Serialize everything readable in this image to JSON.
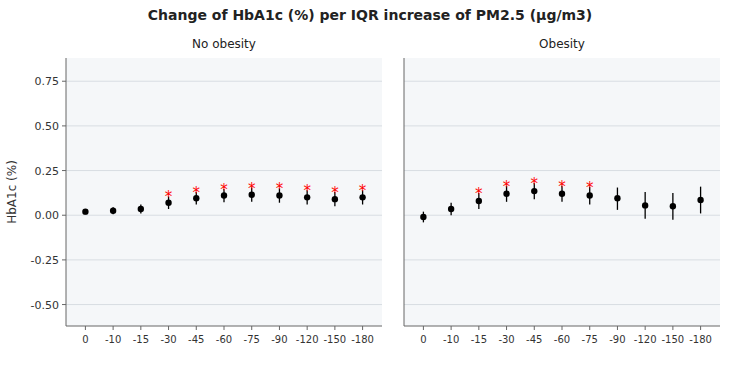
{
  "chart_data": [
    {
      "type": "errorbar",
      "title": "Change of HbA1c (%) per IQR increase of PM2.5 (μg/m3)",
      "subtitle": "No obesity",
      "y_label": "HbA1c (%)",
      "categories": [
        "0",
        "-10",
        "-15",
        "-30",
        "-45",
        "-60",
        "-75",
        "-90",
        "-120",
        "-150",
        "-180"
      ],
      "ylim": [
        -0.62,
        0.88
      ],
      "yticks": [
        {
          "value": -0.5,
          "label": "-0.50"
        },
        -0.25,
        {
          "value": 0.0,
          "label": "0.00"
        },
        0.25,
        {
          "value": 0.5,
          "label": "0.50"
        },
        0.75
      ],
      "grid": true,
      "series": [
        {
          "color": "black",
          "values": [
            0.02,
            0.025,
            0.035,
            0.07,
            0.095,
            0.11,
            0.115,
            0.11,
            0.1,
            0.09,
            0.1
          ],
          "lower": [
            0.005,
            0.005,
            0.01,
            0.035,
            0.06,
            0.073,
            0.075,
            0.07,
            0.06,
            0.05,
            0.06
          ],
          "upper": [
            0.035,
            0.045,
            0.06,
            0.105,
            0.13,
            0.147,
            0.155,
            0.15,
            0.14,
            0.13,
            0.14
          ],
          "significant": [
            false,
            false,
            false,
            true,
            true,
            true,
            true,
            true,
            true,
            true,
            true
          ],
          "annotation": {
            "text": "*",
            "color": "red"
          }
        }
      ]
    },
    {
      "type": "errorbar",
      "subtitle": "Obesity",
      "categories": [
        "0",
        "-10",
        "-15",
        "-30",
        "-45",
        "-60",
        "-75",
        "-90",
        "-120",
        "-150",
        "-180"
      ],
      "ylim": [
        -0.62,
        0.88
      ],
      "yticks": [
        {
          "value": -0.5,
          "label": "-0.50"
        },
        -0.25,
        {
          "value": 0.0,
          "label": "0.00"
        },
        0.25,
        {
          "value": 0.5,
          "label": "0.50"
        },
        0.75
      ],
      "grid": true,
      "tick_labels": "x",
      "series": [
        {
          "color": "black",
          "values": [
            -0.01,
            0.035,
            0.08,
            0.12,
            0.135,
            0.12,
            0.11,
            0.095,
            0.055,
            0.05,
            0.085
          ],
          "lower": [
            -0.04,
            0.0,
            0.035,
            0.075,
            0.09,
            0.075,
            0.06,
            0.03,
            -0.02,
            -0.025,
            0.01
          ],
          "upper": [
            0.02,
            0.07,
            0.125,
            0.165,
            0.18,
            0.165,
            0.16,
            0.155,
            0.13,
            0.125,
            0.16
          ],
          "significant": [
            false,
            false,
            true,
            true,
            true,
            true,
            true,
            false,
            false,
            false,
            false
          ],
          "annotation": {
            "text": "*",
            "color": "red"
          }
        }
      ]
    }
  ]
}
